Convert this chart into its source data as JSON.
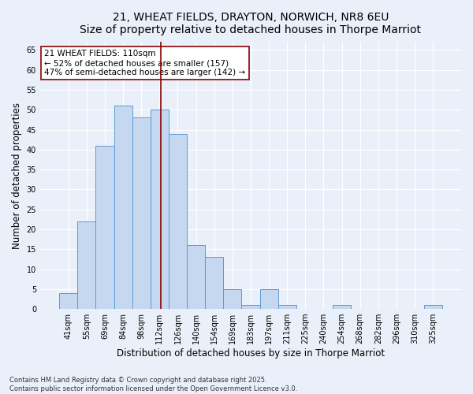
{
  "title_line1": "21, WHEAT FIELDS, DRAYTON, NORWICH, NR8 6EU",
  "title_line2": "Size of property relative to detached houses in Thorpe Marriot",
  "xlabel": "Distribution of detached houses by size in Thorpe Marriot",
  "ylabel": "Number of detached properties",
  "categories": [
    "41sqm",
    "55sqm",
    "69sqm",
    "84sqm",
    "98sqm",
    "112sqm",
    "126sqm",
    "140sqm",
    "154sqm",
    "169sqm",
    "183sqm",
    "197sqm",
    "211sqm",
    "225sqm",
    "240sqm",
    "254sqm",
    "268sqm",
    "282sqm",
    "296sqm",
    "310sqm",
    "325sqm"
  ],
  "values": [
    4,
    22,
    41,
    51,
    48,
    50,
    44,
    16,
    13,
    5,
    1,
    5,
    1,
    0,
    0,
    1,
    0,
    0,
    0,
    0,
    1
  ],
  "bar_color": "#c5d8f0",
  "bar_edge_color": "#5b9bd5",
  "vline_x": 5.08,
  "vline_color": "#8b0000",
  "annotation_text": "21 WHEAT FIELDS: 110sqm\n← 52% of detached houses are smaller (157)\n47% of semi-detached houses are larger (142) →",
  "annotation_box_color": "#ffffff",
  "annotation_box_edge_color": "#8b0000",
  "ylim": [
    0,
    67
  ],
  "yticks": [
    0,
    5,
    10,
    15,
    20,
    25,
    30,
    35,
    40,
    45,
    50,
    55,
    60,
    65
  ],
  "footer_text": "Contains HM Land Registry data © Crown copyright and database right 2025.\nContains public sector information licensed under the Open Government Licence v3.0.",
  "bg_color": "#eaf0f9",
  "grid_color": "#ffffff",
  "title_fontsize": 10,
  "tick_fontsize": 7,
  "label_fontsize": 8.5,
  "footer_fontsize": 6,
  "annot_fontsize": 7.5
}
